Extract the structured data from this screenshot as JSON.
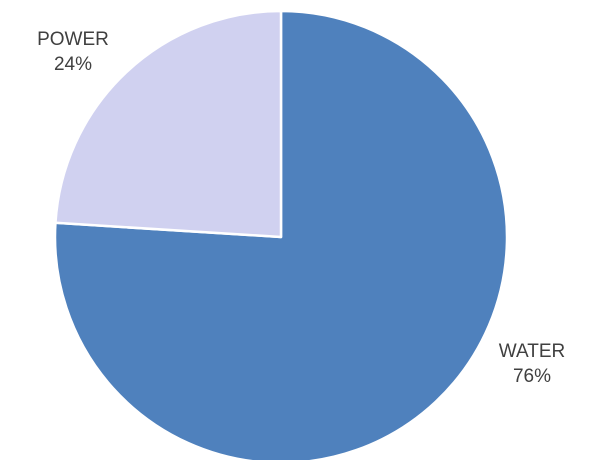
{
  "chart_data": {
    "type": "pie",
    "title": "",
    "slices": [
      {
        "label": "WATER",
        "value": 76,
        "display": "76%",
        "color": "#4f81bd"
      },
      {
        "label": "POWER",
        "value": 24,
        "display": "24%",
        "color": "#d0d1f0"
      }
    ],
    "start_angle_deg": 0,
    "direction": "clockwise",
    "legend": "none",
    "data_labels": "outside, category name and percentage"
  }
}
